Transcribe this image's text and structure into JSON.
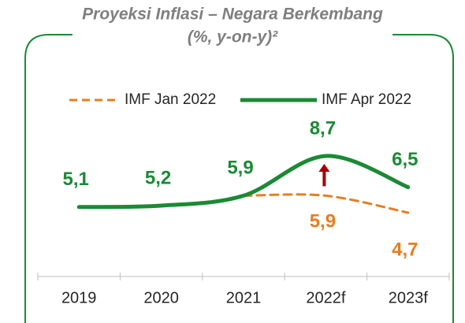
{
  "chart_data": {
    "type": "line",
    "title": "Proyeksi Inflasi – Negara Berkembang",
    "subtitle": "(%, y-on-y)²",
    "categories": [
      "2019",
      "2020",
      "2021",
      "2022f",
      "2023f"
    ],
    "series": [
      {
        "name": "IMF Jan 2022",
        "color": "#e67e22",
        "dashed": true,
        "values": [
          null,
          null,
          5.9,
          5.9,
          4.7
        ],
        "value_labels": [
          null,
          null,
          null,
          "5,9",
          "4,7"
        ]
      },
      {
        "name": "IMF Apr 2022",
        "color": "#1b8a35",
        "dashed": false,
        "values": [
          5.1,
          5.2,
          5.9,
          8.7,
          6.5
        ],
        "value_labels": [
          "5,1",
          "5,2",
          "5,9",
          "8,7",
          "6,5"
        ]
      }
    ]
  }
}
